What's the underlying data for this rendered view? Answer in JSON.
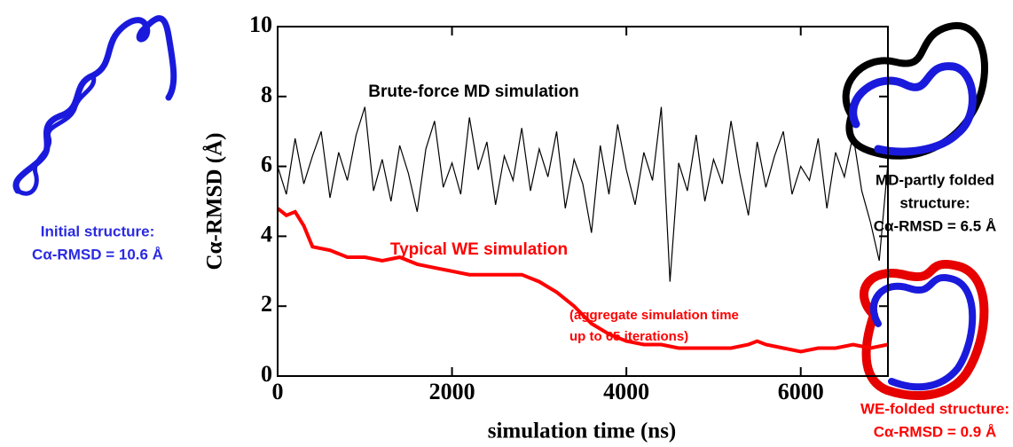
{
  "chart_data": {
    "type": "line",
    "xlabel": "simulation time (ns)",
    "ylabel": "Cα-RMSD (Å)",
    "xlim": [
      0,
      7000
    ],
    "ylim": [
      0,
      10
    ],
    "xticks": [
      0,
      2000,
      4000,
      6000
    ],
    "yticks": [
      0,
      2,
      4,
      6,
      8,
      10
    ],
    "series": [
      {
        "name": "Brute-force MD simulation",
        "color": "#000000",
        "x": [
          0,
          100,
          200,
          300,
          400,
          500,
          600,
          700,
          800,
          900,
          1000,
          1100,
          1200,
          1300,
          1400,
          1500,
          1600,
          1700,
          1800,
          1900,
          2000,
          2100,
          2200,
          2300,
          2400,
          2500,
          2600,
          2700,
          2800,
          2900,
          3000,
          3100,
          3200,
          3300,
          3400,
          3500,
          3600,
          3700,
          3800,
          3900,
          4000,
          4100,
          4200,
          4300,
          4400,
          4500,
          4600,
          4700,
          4800,
          4900,
          5000,
          5100,
          5200,
          5300,
          5400,
          5500,
          5600,
          5700,
          5800,
          5900,
          6000,
          6100,
          6200,
          6300,
          6400,
          6500,
          6600,
          6700,
          6800,
          6900,
          7000
        ],
        "values": [
          6.0,
          5.2,
          6.8,
          5.5,
          6.3,
          7.0,
          5.1,
          6.4,
          5.6,
          6.9,
          7.7,
          5.3,
          6.2,
          5.0,
          6.6,
          5.8,
          4.7,
          6.5,
          7.3,
          5.4,
          6.1,
          5.2,
          7.4,
          5.9,
          6.7,
          4.9,
          6.3,
          5.6,
          7.1,
          5.3,
          6.5,
          5.7,
          7.0,
          4.8,
          6.2,
          5.5,
          4.1,
          6.6,
          5.2,
          7.2,
          5.9,
          4.9,
          6.4,
          5.6,
          7.7,
          2.7,
          6.1,
          5.3,
          6.9,
          5.0,
          6.2,
          5.5,
          7.3,
          5.8,
          4.6,
          6.7,
          5.4,
          6.3,
          7.0,
          5.2,
          6.0,
          5.6,
          6.8,
          4.8,
          6.4,
          5.7,
          6.9,
          5.3,
          4.4,
          3.3,
          6.1
        ]
      },
      {
        "name": "Typical WE simulation",
        "color": "#ff0000",
        "x": [
          0,
          100,
          200,
          300,
          400,
          600,
          800,
          1000,
          1200,
          1400,
          1600,
          1800,
          2000,
          2200,
          2400,
          2600,
          2800,
          3000,
          3200,
          3400,
          3600,
          3800,
          4000,
          4200,
          4400,
          4600,
          4800,
          5000,
          5200,
          5400,
          5500,
          5600,
          5800,
          6000,
          6200,
          6400,
          6600,
          6800,
          7000
        ],
        "values": [
          4.8,
          4.6,
          4.7,
          4.3,
          3.7,
          3.6,
          3.4,
          3.4,
          3.3,
          3.4,
          3.2,
          3.1,
          3.0,
          2.9,
          2.9,
          2.9,
          2.9,
          2.7,
          2.4,
          2.0,
          1.5,
          1.2,
          1.0,
          0.9,
          0.9,
          0.8,
          0.8,
          0.8,
          0.8,
          0.9,
          1.0,
          0.9,
          0.8,
          0.7,
          0.8,
          0.8,
          0.9,
          0.8,
          0.9
        ]
      }
    ],
    "annotations": [
      "(aggregate simulation time",
      "up to  65 iterations)"
    ]
  },
  "structures": [
    {
      "lines": [
        "Initial structure:",
        "Cα-RMSD = 10.6 Å"
      ],
      "color": "#2a2ae0"
    },
    {
      "lines": [
        "MD-partly folded",
        "structure:",
        "Cα-RMSD = 6.5 Å"
      ],
      "color": "#000000"
    },
    {
      "lines": [
        "WE-folded structure:",
        "Cα-RMSD = 0.9 Å"
      ],
      "color": "#ff0000"
    }
  ]
}
